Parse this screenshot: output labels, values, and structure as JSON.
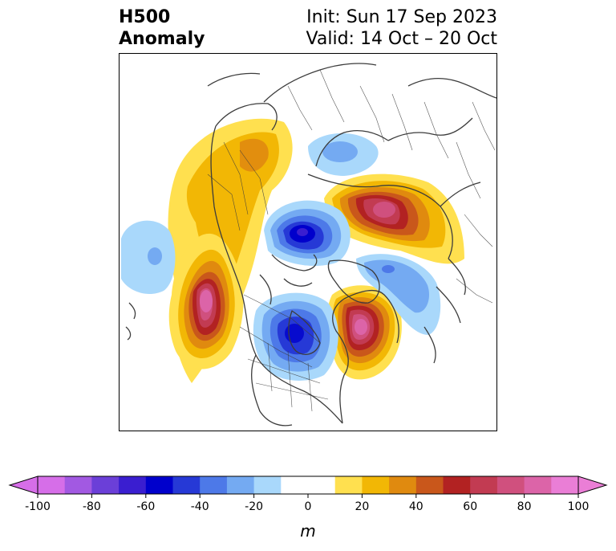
{
  "header": {
    "title_line1": "H500",
    "title_line2": "Anomaly",
    "init": "Init: Sun 17 Sep 2023",
    "valid": "Valid: 14 Oct – 20 Oct"
  },
  "map": {
    "projection": "north-polar-stereographic",
    "anomalies": [
      {
        "name": "west-coast-ridge",
        "sign": "positive",
        "peak": 90
      },
      {
        "name": "eastern-canada-ridge",
        "sign": "positive",
        "peak": 90
      },
      {
        "name": "siberia-ridge",
        "sign": "positive",
        "peak": 70
      },
      {
        "name": "alaska-yukon-ridge",
        "sign": "positive",
        "peak": 30
      },
      {
        "name": "arctic-trough",
        "sign": "negative",
        "peak": -60
      },
      {
        "name": "central-us-trough",
        "sign": "negative",
        "peak": -50
      },
      {
        "name": "pacific-trough",
        "sign": "negative",
        "peak": -30
      },
      {
        "name": "north-atlantic-trough",
        "sign": "negative",
        "peak": -30
      },
      {
        "name": "eurasia-trough",
        "sign": "negative",
        "peak": -30
      }
    ]
  },
  "colorbar": {
    "unit": "m",
    "ticks": [
      "-100",
      "-80",
      "-60",
      "-40",
      "-20",
      "0",
      "20",
      "40",
      "60",
      "80",
      "100"
    ],
    "extend": "both",
    "colors": [
      "#d66ee8",
      "#a259e2",
      "#6b3fd8",
      "#3a1ed0",
      "#0000cc",
      "#2639d6",
      "#4d79e8",
      "#74aaf2",
      "#a9d8fb",
      "#ffffff",
      "#ffffff",
      "#ffe04f",
      "#f2b705",
      "#e08a0f",
      "#c9571b",
      "#b22222",
      "#c23b52",
      "#d0507e",
      "#dc64a8",
      "#ea7ed6"
    ],
    "under_color": "#d66ee8",
    "over_color": "#ea7ed6"
  }
}
